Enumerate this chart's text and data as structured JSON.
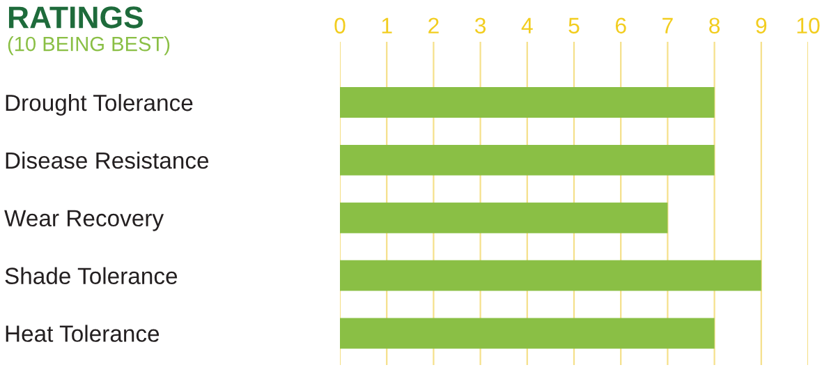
{
  "chart_data": {
    "type": "bar",
    "orientation": "horizontal",
    "title": "RATINGS",
    "subtitle": "(10 BEING BEST)",
    "categories": [
      "Drought Tolerance",
      "Disease Resistance",
      "Wear Recovery",
      "Shade Tolerance",
      "Heat Tolerance"
    ],
    "values": [
      8,
      8,
      7,
      9,
      8
    ],
    "color": "#8abf45",
    "xlim": [
      0,
      10
    ],
    "xticks": [
      0,
      1,
      2,
      3,
      4,
      5,
      6,
      7,
      8,
      9,
      10
    ],
    "grid": "x",
    "legend": false
  }
}
